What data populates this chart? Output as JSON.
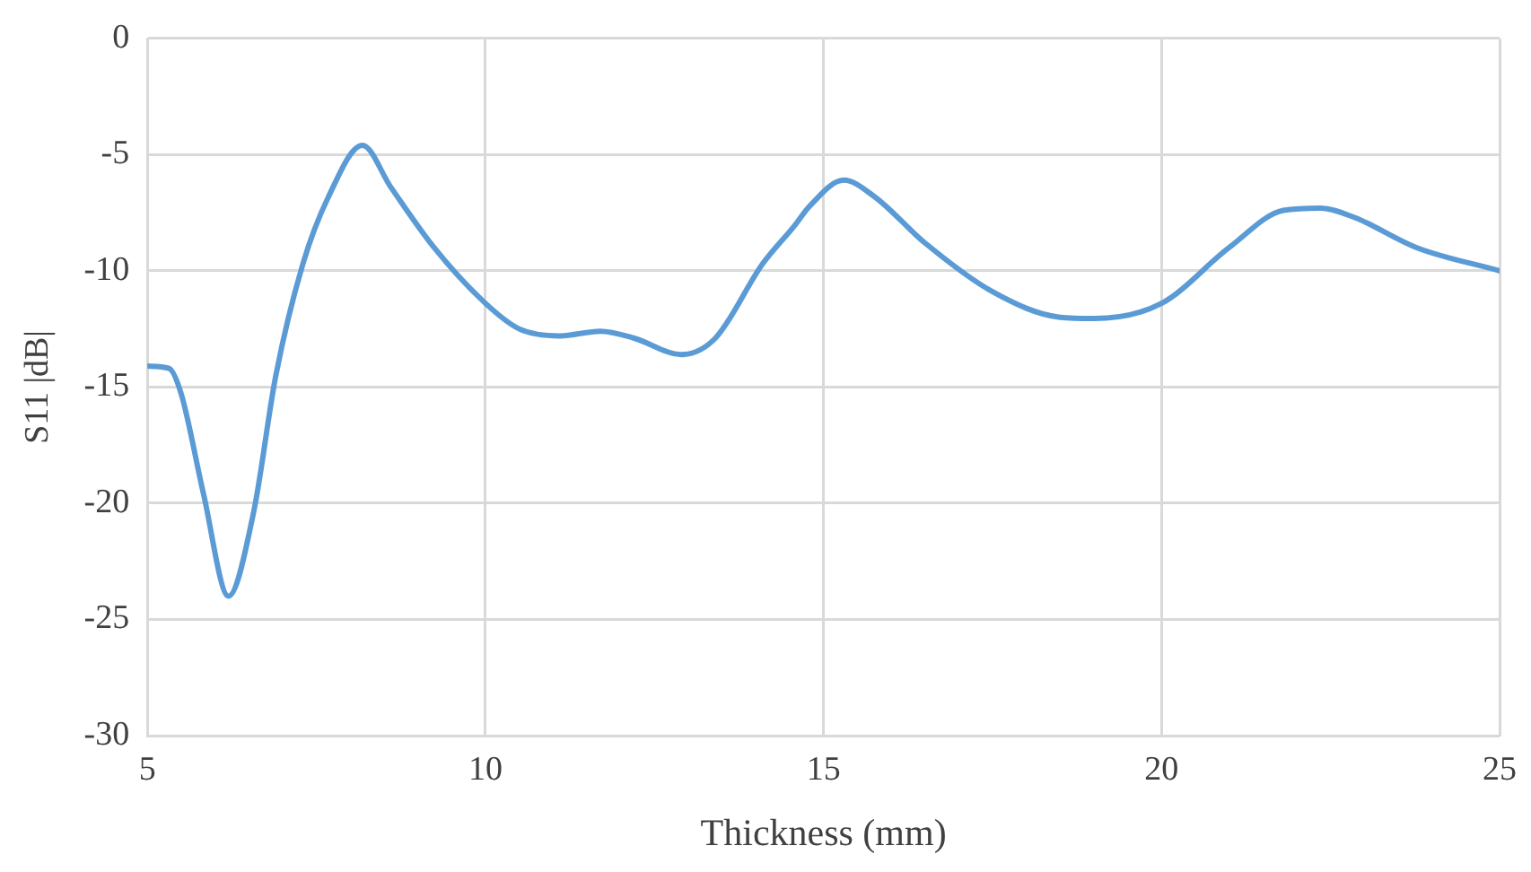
{
  "chart_data": {
    "type": "line",
    "xlabel": "Thickness (mm)",
    "ylabel": "S11 |dB|",
    "series": [
      {
        "color": "#5b9bd5",
        "x": [
          5,
          5.32,
          5.5,
          5.83,
          6.2,
          6.57,
          6.9,
          7.3,
          7.68,
          8.18,
          8.6,
          9.24,
          10,
          10.5,
          11.1,
          11.7,
          12.2,
          12.9,
          13.4,
          14.1,
          14.56,
          14.8,
          15.3,
          15.75,
          16.5,
          17.5,
          18.5,
          19,
          20,
          21,
          21.8,
          22.35,
          22.85,
          23.77,
          25
        ],
        "values": [
          -14.1,
          -14.2,
          -15.3,
          -19.6,
          -24,
          -20.4,
          -14.5,
          -9.7,
          -6.8,
          -4.6,
          -6.4,
          -9,
          -11.4,
          -12.5,
          -12.8,
          -12.6,
          -12.9,
          -13.6,
          -12.9,
          -9.7,
          -8.1,
          -7.2,
          -6.1,
          -6.8,
          -8.8,
          -10.9,
          -12,
          -12.05,
          -11.4,
          -9,
          -7.4,
          -7.3,
          -7.7,
          -9,
          -10
        ]
      }
    ],
    "xlim": [
      5,
      25
    ],
    "xticks": [
      5,
      10,
      15,
      20,
      25
    ],
    "ylim": [
      -30,
      0
    ],
    "yticks": [
      -30,
      -25,
      -20,
      -15,
      -10,
      -5,
      0
    ],
    "grid": true,
    "legend": false,
    "marker": "none",
    "line_style": "solid"
  }
}
